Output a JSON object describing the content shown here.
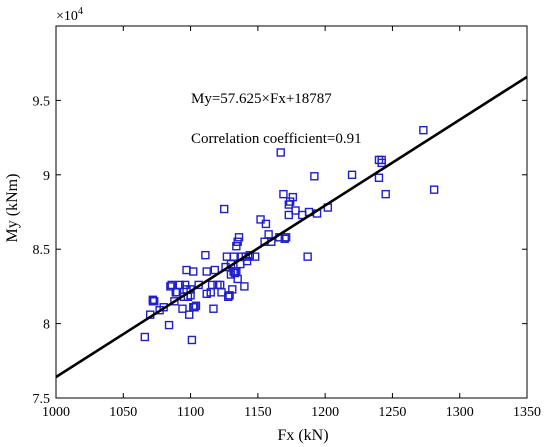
{
  "chart_data": {
    "type": "scatter",
    "xlabel": "Fx (kN)",
    "ylabel": "My (kNm)",
    "y_multiplier": "×10",
    "y_multiplier_exp": "4",
    "xlim": [
      1000,
      1350
    ],
    "ylim": [
      7.5,
      10
    ],
    "xticks": [
      1000,
      1050,
      1100,
      1150,
      1200,
      1250,
      1300,
      1350
    ],
    "yticks": [
      7.5,
      8,
      8.5,
      9,
      9.5
    ],
    "ytick_labels": [
      "7.5",
      "8",
      "8.5",
      "9",
      "9.5"
    ],
    "grid": false,
    "annotations": {
      "equation": "My=57.625×Fx+18787",
      "correlation": "Correlation coefficient=0.91"
    },
    "marker_color": "#1f1fcc",
    "line_color": "#000000",
    "fit_line": {
      "slope": 57.625,
      "intercept": 18787,
      "x_range": [
        1000,
        1350
      ]
    },
    "series": [
      {
        "marker": "square",
        "x": [
          1066,
          1070,
          1072,
          1072,
          1073,
          1077,
          1080,
          1084,
          1085,
          1086,
          1088,
          1089,
          1090,
          1092,
          1094,
          1095,
          1096,
          1097,
          1097,
          1098,
          1099,
          1100,
          1100,
          1101,
          1102,
          1102,
          1103,
          1104,
          1106,
          1111,
          1112,
          1112,
          1115,
          1116,
          1117,
          1118,
          1120,
          1122,
          1123,
          1125,
          1126,
          1127,
          1128,
          1129,
          1130,
          1130,
          1131,
          1132,
          1132,
          1133,
          1133,
          1134,
          1134,
          1135,
          1135,
          1136,
          1137,
          1138,
          1140,
          1141,
          1142,
          1144,
          1148,
          1152,
          1155,
          1156,
          1158,
          1160,
          1166,
          1167,
          1169,
          1170,
          1171,
          1173,
          1173,
          1174,
          1176,
          1178,
          1183,
          1187,
          1188,
          1192,
          1194,
          1202,
          1220,
          1240,
          1240,
          1242,
          1242,
          1245,
          1273,
          1281
        ],
        "y": [
          7.91,
          8.06,
          8.16,
          8.15,
          8.15,
          8.09,
          8.11,
          7.99,
          8.25,
          8.26,
          8.15,
          8.21,
          8.21,
          8.26,
          8.1,
          8.18,
          8.26,
          8.36,
          8.23,
          8.18,
          8.06,
          8.19,
          8.23,
          7.89,
          8.35,
          8.11,
          8.11,
          8.12,
          8.26,
          8.46,
          8.35,
          8.2,
          8.21,
          8.26,
          8.1,
          8.36,
          8.26,
          8.26,
          8.21,
          8.77,
          8.38,
          8.45,
          8.18,
          8.19,
          8.33,
          8.4,
          8.23,
          8.45,
          8.35,
          8.34,
          8.35,
          8.52,
          8.35,
          8.55,
          8.3,
          8.58,
          8.4,
          8.45,
          8.25,
          8.45,
          8.42,
          8.46,
          8.45,
          8.7,
          8.55,
          8.67,
          8.6,
          8.55,
          8.58,
          9.15,
          8.87,
          8.57,
          8.58,
          8.8,
          8.73,
          8.82,
          8.85,
          8.76,
          8.73,
          8.45,
          8.75,
          8.99,
          8.74,
          8.78,
          9.0,
          8.98,
          9.1,
          9.1,
          9.08,
          8.87,
          9.3,
          8.9
        ]
      }
    ]
  }
}
